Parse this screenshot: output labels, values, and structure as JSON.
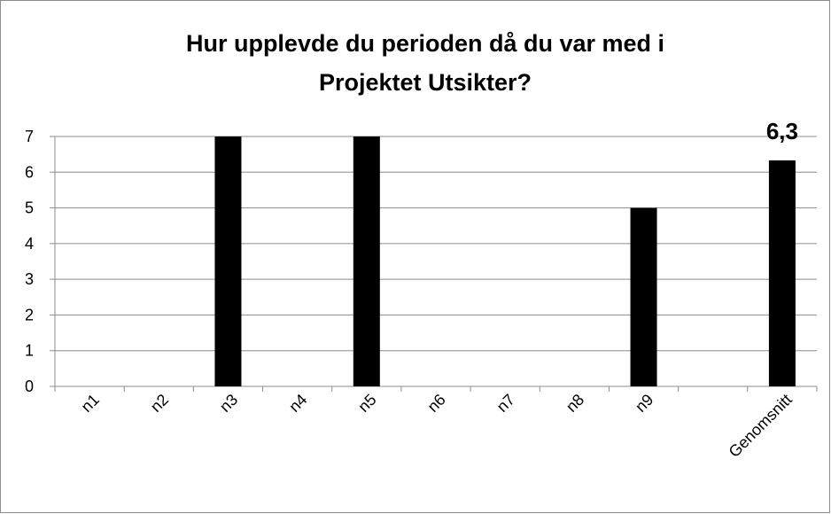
{
  "chart_data": {
    "type": "bar",
    "title": [
      "Hur upplevde du perioden då du var med i",
      "Projektet Utsikter?"
    ],
    "categories": [
      "n1",
      "n2",
      "n3",
      "n4",
      "n5",
      "n6",
      "n7",
      "n8",
      "n9",
      null,
      "Genomsnitt"
    ],
    "values": [
      0,
      0,
      7,
      0,
      7,
      0,
      0,
      0,
      5,
      null,
      6.33
    ],
    "value_labels": [
      null,
      null,
      null,
      null,
      null,
      null,
      null,
      null,
      null,
      null,
      "6,3"
    ],
    "color": "#000000",
    "ylim": [
      0,
      7
    ],
    "yticks": [
      0,
      1,
      2,
      3,
      4,
      5,
      6,
      7
    ],
    "grid": true
  }
}
